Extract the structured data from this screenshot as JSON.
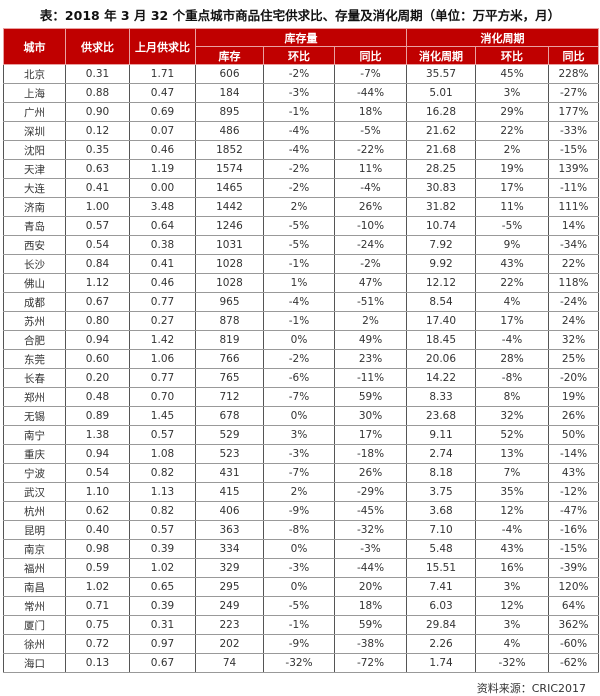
{
  "title": "表：2018 年 3 月 32 个重点城市商品住宅供求比、存量及消化周期（单位：万平方米，月）",
  "header": {
    "city": "城市",
    "supply_ratio": "供求比",
    "last_month_ratio": "上月供求比",
    "inventory_group": "库存量",
    "digestion_group": "消化周期",
    "inventory": "库存",
    "mom": "环比",
    "yoy": "同比",
    "digestion": "消化周期",
    "mom2": "环比",
    "yoy2": "同比"
  },
  "colors": {
    "header_bg": "#c00000",
    "header_text": "#ffffff"
  },
  "rows": [
    [
      "北京",
      "0.31",
      "1.71",
      "606",
      "-2%",
      "-7%",
      "35.57",
      "45%",
      "228%"
    ],
    [
      "上海",
      "0.88",
      "0.47",
      "184",
      "-3%",
      "-44%",
      "5.01",
      "3%",
      "-27%"
    ],
    [
      "广州",
      "0.90",
      "0.69",
      "895",
      "-1%",
      "18%",
      "16.28",
      "29%",
      "177%"
    ],
    [
      "深圳",
      "0.12",
      "0.07",
      "486",
      "-4%",
      "-5%",
      "21.62",
      "22%",
      "-33%"
    ],
    [
      "沈阳",
      "0.35",
      "0.46",
      "1852",
      "-4%",
      "-22%",
      "21.68",
      "2%",
      "-15%"
    ],
    [
      "天津",
      "0.63",
      "1.19",
      "1574",
      "-2%",
      "11%",
      "28.25",
      "19%",
      "139%"
    ],
    [
      "大连",
      "0.41",
      "0.00",
      "1465",
      "-2%",
      "-4%",
      "30.83",
      "17%",
      "-11%"
    ],
    [
      "济南",
      "1.00",
      "3.48",
      "1442",
      "2%",
      "26%",
      "31.82",
      "11%",
      "111%"
    ],
    [
      "青岛",
      "0.57",
      "0.64",
      "1246",
      "-5%",
      "-10%",
      "10.74",
      "-5%",
      "14%"
    ],
    [
      "西安",
      "0.54",
      "0.38",
      "1031",
      "-5%",
      "-24%",
      "7.92",
      "9%",
      "-34%"
    ],
    [
      "长沙",
      "0.84",
      "0.41",
      "1028",
      "-1%",
      "-2%",
      "9.92",
      "43%",
      "22%"
    ],
    [
      "佛山",
      "1.12",
      "0.46",
      "1028",
      "1%",
      "47%",
      "12.12",
      "22%",
      "118%"
    ],
    [
      "成都",
      "0.67",
      "0.77",
      "965",
      "-4%",
      "-51%",
      "8.54",
      "4%",
      "-24%"
    ],
    [
      "苏州",
      "0.80",
      "0.27",
      "878",
      "-1%",
      "2%",
      "17.40",
      "17%",
      "24%"
    ],
    [
      "合肥",
      "0.94",
      "1.42",
      "819",
      "0%",
      "49%",
      "18.45",
      "-4%",
      "32%"
    ],
    [
      "东莞",
      "0.60",
      "1.06",
      "766",
      "-2%",
      "23%",
      "20.06",
      "28%",
      "25%"
    ],
    [
      "长春",
      "0.20",
      "0.77",
      "765",
      "-6%",
      "-11%",
      "14.22",
      "-8%",
      "-20%"
    ],
    [
      "郑州",
      "0.48",
      "0.70",
      "712",
      "-7%",
      "59%",
      "8.33",
      "8%",
      "19%"
    ],
    [
      "无锡",
      "0.89",
      "1.45",
      "678",
      "0%",
      "30%",
      "23.68",
      "32%",
      "26%"
    ],
    [
      "南宁",
      "1.38",
      "0.57",
      "529",
      "3%",
      "17%",
      "9.11",
      "52%",
      "50%"
    ],
    [
      "重庆",
      "0.94",
      "1.08",
      "523",
      "-3%",
      "-18%",
      "2.74",
      "13%",
      "-14%"
    ],
    [
      "宁波",
      "0.54",
      "0.82",
      "431",
      "-7%",
      "26%",
      "8.18",
      "7%",
      "43%"
    ],
    [
      "武汉",
      "1.10",
      "1.13",
      "415",
      "2%",
      "-29%",
      "3.75",
      "35%",
      "-12%"
    ],
    [
      "杭州",
      "0.62",
      "0.82",
      "406",
      "-9%",
      "-45%",
      "3.68",
      "12%",
      "-47%"
    ],
    [
      "昆明",
      "0.40",
      "0.57",
      "363",
      "-8%",
      "-32%",
      "7.10",
      "-4%",
      "-16%"
    ],
    [
      "南京",
      "0.98",
      "0.39",
      "334",
      "0%",
      "-3%",
      "5.48",
      "43%",
      "-15%"
    ],
    [
      "福州",
      "0.59",
      "1.02",
      "329",
      "-3%",
      "-44%",
      "15.51",
      "16%",
      "-39%"
    ],
    [
      "南昌",
      "1.02",
      "0.65",
      "295",
      "0%",
      "20%",
      "7.41",
      "3%",
      "120%"
    ],
    [
      "常州",
      "0.71",
      "0.39",
      "249",
      "-5%",
      "18%",
      "6.03",
      "12%",
      "64%"
    ],
    [
      "厦门",
      "0.75",
      "0.31",
      "223",
      "-1%",
      "59%",
      "29.84",
      "3%",
      "362%"
    ],
    [
      "徐州",
      "0.72",
      "0.97",
      "202",
      "-9%",
      "-38%",
      "2.26",
      "4%",
      "-60%"
    ],
    [
      "海口",
      "0.13",
      "0.67",
      "74",
      "-32%",
      "-72%",
      "1.74",
      "-32%",
      "-62%"
    ]
  ],
  "footer": "资料来源：CRIC2017"
}
